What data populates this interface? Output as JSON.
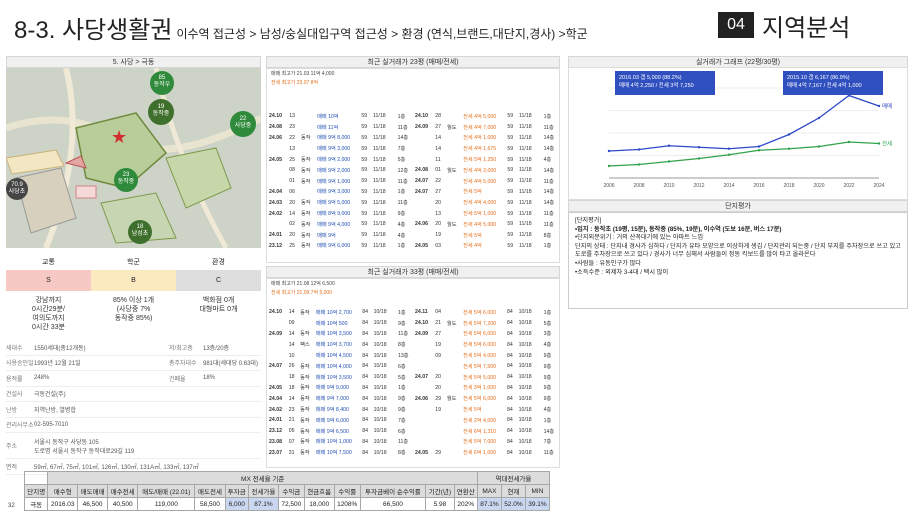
{
  "header": {
    "title": "8-3. 사당생활권",
    "subtitle": "이수역 접근성 > 남성/숭실대입구역 접근성 > 환경 (연식,브랜드,대단지,경사) >학군",
    "chapter_num": "04",
    "chapter_title": "지역분석"
  },
  "map": {
    "label": "5. 사당 > 극동",
    "tags": [
      {
        "text": "85\n동작우"
      },
      {
        "text": "19\n동작중"
      },
      {
        "text": "22\n사당중"
      },
      {
        "text": "23\n동작중"
      },
      {
        "text": "70.9\n사당초"
      },
      {
        "text": "18\n남성초"
      }
    ]
  },
  "categories": {
    "heads": [
      "교통",
      "학군",
      "환경"
    ],
    "ratings": [
      "S",
      "B",
      "C"
    ],
    "texts": [
      "강남까지\n0시간29분/\n여의도까지\n0시간 33분",
      "85% 이상 1개\n(사당중 7%\n동작중 85%)",
      "백화점 0개\n대형마트 0개"
    ],
    "colors": [
      "#f7c9c4",
      "#fbe9c0",
      "#dedede"
    ]
  },
  "info": [
    {
      "k": "세대수",
      "v": "1550세대(총12개동)",
      "k2": "저/최고층",
      "v2": "13층/20층"
    },
    {
      "k": "사용승인일",
      "v": "1993년 12월 21일",
      "k2": "총주차대수",
      "v2": "981대(세대당 0.63대)"
    },
    {
      "k": "용적률",
      "v": "248%",
      "k2": "건폐율",
      "v2": "18%"
    },
    {
      "k": "건설사",
      "v": "극동건설(주)",
      "k2": "",
      "v2": ""
    },
    {
      "k": "난방",
      "v": "지역난방, 열병합",
      "k2": "",
      "v2": ""
    },
    {
      "k": "관리사무소",
      "v": "02-595-7010",
      "k2": "",
      "v2": ""
    },
    {
      "k": "주소",
      "v": "서울시 동작구 사당동 105\n도로명 서울시 동작구 동작대로29길 119",
      "k2": "",
      "v2": ""
    },
    {
      "k": "면적",
      "v": "59㎡, 67㎡, 75㎡, 101㎡, 126㎡, 130㎡, 131A㎡, 133㎡, 137㎡",
      "k2": "",
      "v2": ""
    }
  ],
  "panels": {
    "t23_title": "최근 실거래가 23평 (매매/전세)",
    "t33_title": "최근 실거래가 33평 (매매/전세)",
    "chart_title": "실거래가 그래프 (22평/30평)",
    "eval_title": "단지평가"
  },
  "t23": {
    "s1": "매매 최고가 21.03 11억 4,000",
    "s2": "전세 최고가 23.07 8억",
    "left": [
      [
        "24.10",
        "13",
        "",
        "매매 10억",
        "59",
        "11/18",
        "",
        "1층"
      ],
      [
        "24.08",
        "23",
        "",
        "매매 11억",
        "59",
        "11/18",
        "",
        "11층"
      ],
      [
        "24.06",
        "22",
        "동작",
        "매매 9억 8,000",
        "59",
        "11/18",
        "",
        "14층"
      ],
      [
        "",
        "13",
        "",
        "매매 9억 3,000",
        "59",
        "11/18",
        "",
        "7층"
      ],
      [
        "24.05",
        "25",
        "동작",
        "매매 9억 2,000",
        "59",
        "11/18",
        "",
        "5층"
      ],
      [
        "",
        "08",
        "동작",
        "매매 9억 2,000",
        "59",
        "11/18",
        "",
        "12층"
      ],
      [
        "",
        "01",
        "동작",
        "매매 9억 1,000",
        "59",
        "11/18",
        "",
        "11층"
      ],
      [
        "24.04",
        "06",
        "",
        "매매 9억 3,000",
        "59",
        "11/18",
        "",
        "1층"
      ],
      [
        "24.03",
        "20",
        "동작",
        "매매 9억 5,000",
        "59",
        "11/18",
        "",
        "11층"
      ],
      [
        "24.02",
        "14",
        "동작",
        "매매 8억 9,000",
        "59",
        "11/18",
        "",
        "9층"
      ],
      [
        "",
        "02",
        "동작",
        "매매 9억 4,000",
        "59",
        "11/18",
        "",
        "4층"
      ],
      [
        "24.01",
        "20",
        "동작",
        "매매 9억",
        "59",
        "11/18",
        "",
        "4층"
      ],
      [
        "23.12",
        "25",
        "동작",
        "매매 9억 6,000",
        "59",
        "11/18",
        "",
        "1층"
      ]
    ],
    "right": [
      [
        "24.10",
        "28",
        "",
        "전세 4억 5,000",
        "59",
        "11/18",
        "",
        "1층"
      ],
      [
        "24.09",
        "27",
        "월도",
        "전세 4억 7,000",
        "59",
        "11/18",
        "",
        "11층"
      ],
      [
        "",
        "14",
        "",
        "전세 4억 1,000",
        "59",
        "11/18",
        "",
        "14층"
      ],
      [
        "",
        "14",
        "",
        "전세 4억 1,675",
        "59",
        "11/18",
        "",
        "14층"
      ],
      [
        "",
        "11",
        "",
        "전세 5억 1,250",
        "59",
        "11/18",
        "",
        "4층"
      ],
      [
        "24.08",
        "01",
        "월도",
        "전세 4억 2,000",
        "59",
        "11/18",
        "",
        "14층"
      ],
      [
        "24.07",
        "22",
        "",
        "전세 4억 5,000",
        "59",
        "11/18",
        "",
        "11층"
      ],
      [
        "24.07",
        "27",
        "",
        "전세 5억",
        "59",
        "11/18",
        "",
        "14층"
      ],
      [
        "",
        "20",
        "",
        "전세 4억 4,000",
        "59",
        "11/18",
        "",
        "14층"
      ],
      [
        "",
        "13",
        "",
        "전세 5억 1,000",
        "59",
        "11/18",
        "",
        "11층"
      ],
      [
        "24.06",
        "20",
        "월도",
        "전세 4억 5,000",
        "59",
        "11/18",
        "",
        "11층"
      ],
      [
        "",
        "19",
        "",
        "전세 5억",
        "59",
        "11/18",
        "",
        "8층"
      ],
      [
        "24.05",
        "03",
        "",
        "전세 4억",
        "59",
        "11/18",
        "",
        "1층"
      ]
    ]
  },
  "t33": {
    "s1": "매매 최고가 21.08 12억 6,500",
    "s2": "전세 최고가 21.09 7억 5,000",
    "left": [
      [
        "24.10",
        "14",
        "동작",
        "매매 10억 2,700",
        "84",
        "10/18",
        "",
        "1층"
      ],
      [
        "",
        "09",
        "",
        "매매 10억 500",
        "84",
        "10/18",
        "",
        "9층"
      ],
      [
        "24.09",
        "14",
        "동작",
        "매매 10억 3,500",
        "84",
        "10/18",
        "",
        "11층"
      ],
      [
        "",
        "14",
        "팩스",
        "매매 10억 3,700",
        "84",
        "10/18",
        "",
        "8층"
      ],
      [
        "",
        "10",
        "",
        "매매 10억 4,500",
        "84",
        "10/18",
        "",
        "13층"
      ],
      [
        "24.07",
        "26",
        "동작",
        "매매 10억 4,000",
        "84",
        "10/18",
        "",
        "6층"
      ],
      [
        "",
        "18",
        "동작",
        "매매 10억 3,500",
        "84",
        "10/18",
        "",
        "5층"
      ],
      [
        "24.05",
        "18",
        "동작",
        "매매 9억 9,000",
        "84",
        "10/18",
        "",
        "1층"
      ],
      [
        "24.04",
        "14",
        "동작",
        "매매 9억 7,000",
        "84",
        "10/18",
        "",
        "9층"
      ],
      [
        "24.02",
        "23",
        "동작",
        "매매 9억 8,400",
        "84",
        "10/18",
        "",
        "9층"
      ],
      [
        "24.01",
        "21",
        "동작",
        "매매 9억 6,000",
        "84",
        "10/18",
        "",
        "7층"
      ],
      [
        "23.12",
        "05",
        "동작",
        "매매 9억 6,500",
        "84",
        "10/18",
        "",
        "6층"
      ],
      [
        "23.08",
        "07",
        "동작",
        "매매 10억 1,000",
        "84",
        "10/18",
        "",
        "11층"
      ],
      [
        "23.07",
        "31",
        "동작",
        "매매 10억 7,500",
        "84",
        "10/18",
        "",
        "8층"
      ]
    ],
    "right": [
      [
        "24.11",
        "04",
        "",
        "전세 5억 6,000",
        "84",
        "10/18",
        "",
        "1층"
      ],
      [
        "24.10",
        "21",
        "월도",
        "전세 5억 7,200",
        "84",
        "10/18",
        "",
        "5층"
      ],
      [
        "24.09",
        "27",
        "",
        "전세 5억 6,000",
        "84",
        "10/18",
        "",
        "3층"
      ],
      [
        "",
        "19",
        "",
        "전세 5억 6,000",
        "84",
        "10/18",
        "",
        "4층"
      ],
      [
        "",
        "09",
        "",
        "전세 5억 4,000",
        "84",
        "10/18",
        "",
        "9층"
      ],
      [
        "",
        "",
        "",
        "전세 5억 7,500",
        "84",
        "10/18",
        "",
        "9층"
      ],
      [
        "24.07",
        "20",
        "",
        "전세 5억 5,000",
        "84",
        "10/18",
        "",
        "9층"
      ],
      [
        "",
        "20",
        "",
        "전세 3억 1,000",
        "84",
        "10/18",
        "",
        "9층"
      ],
      [
        "24.06",
        "29",
        "월도",
        "전세 5억 6,000",
        "84",
        "10/18",
        "",
        "9층"
      ],
      [
        "",
        "19",
        "",
        "전세 5억",
        "84",
        "10/18",
        "",
        "4층"
      ],
      [
        "",
        "",
        "",
        "전세 2억 4,000",
        "84",
        "10/18",
        "",
        "1층"
      ],
      [
        "",
        "",
        "",
        "전세 6억 1,310",
        "84",
        "10/18",
        "",
        "14층"
      ],
      [
        "",
        "",
        "",
        "전세 5억 7,000",
        "84",
        "10/18",
        "",
        "7층"
      ],
      [
        "24.05",
        "29",
        "",
        "전세 6억 1,000",
        "84",
        "10/18",
        "",
        "11층"
      ]
    ]
  },
  "chart_notes": {
    "note1_l1": "2016.03 갭 5,000 (88.2%)",
    "note1_l2": "매매 4억 2,250 / 전세 3억 7,250",
    "note2_l1": "2015.10 갭 6,167 (86.9%)",
    "note2_l1b": "매매 4억 7,167 / 전세 4억 1,000"
  },
  "chart_data": {
    "type": "line",
    "x_ticks": [
      "2006",
      "2008",
      "2010",
      "2012",
      "2014",
      "2016",
      "2018",
      "2020",
      "2022",
      "2024"
    ],
    "series": [
      {
        "name": "매매",
        "color": "#2e49c8",
        "values": [
          3.6,
          3.8,
          4.3,
          4.1,
          3.9,
          4.2,
          5.8,
          8.0,
          11.0,
          9.6
        ]
      },
      {
        "name": "전세",
        "color": "#2fa34a",
        "values": [
          1.6,
          1.8,
          2.2,
          2.6,
          3.1,
          3.7,
          3.9,
          4.2,
          4.8,
          4.6
        ]
      }
    ]
  },
  "evaluation": [
    "[단지평가]",
    "•입지 : 동작초 (19평, 15분), 동작중 (85%, 19분), 이수역 (도보 16분, 버스 17분)",
    "•단지외분위기 : 거의 산꼭대기에 있는 아파트 느낌",
    "단지의 상태 : 단지내 경사가 심하다 / 단지가 유타 모양으로 이상하게 생김 / 단지관리 되는중 / 단지 부지를 주차장으로 쓰고 있고 도로를 주차장으로 쓰고 있다 / 경사가 너무 심해서 사람들이 정동 킥보드를 많이 타고 올라온다",
    "•사람들 : 유동인구가 많다",
    "•소득수준 : 외제차 3-4대 / 택시 많이"
  ],
  "bottom_table": {
    "group1": "MX 전세율 기준",
    "group2": "역대전세가율",
    "headers": [
      "단지명",
      "매수형",
      "매도매매",
      "매수전세",
      "매도/매매 (22.01)",
      "매도전세",
      "투자금",
      "전세가율",
      "수익금",
      "현금흐름",
      "수익률",
      "투자금베이 순수익률",
      "기간(년)",
      "연환산",
      "MAX",
      "현재",
      "MIN"
    ],
    "row": [
      "극동",
      "2016.03",
      "46,500",
      "40,500",
      "119,000",
      "58,500",
      "6,000",
      "87.1%",
      "72,500",
      "18,000",
      "1208%",
      "66,500",
      "5.98",
      "202%",
      "87.1%",
      "52.0%",
      "39.1%"
    ]
  },
  "page_number": "32"
}
